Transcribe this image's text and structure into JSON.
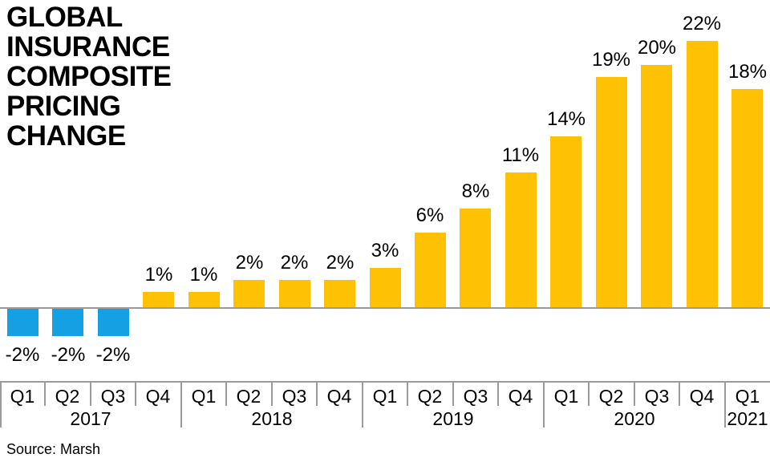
{
  "title": {
    "lines": [
      "GLOBAL",
      "INSURANCE",
      "COMPOSITE",
      "PRICING",
      "CHANGE"
    ]
  },
  "source_label": "Source: Marsh",
  "chart_data": {
    "type": "bar",
    "title": "GLOBAL INSURANCE COMPOSITE PRICING CHANGE",
    "unit": "%",
    "ylabel": "",
    "xlabel": "",
    "ylim": [
      -2,
      22
    ],
    "grid": false,
    "legend": "none",
    "source": "Source: Marsh",
    "colors": {
      "positive_bar": "#FFC103",
      "negative_bar": "#14A0E2",
      "axis_line": "#9B9B9B",
      "text": "#000000",
      "background": "#FFFFFF"
    },
    "points": [
      {
        "quarter": "Q1",
        "year": "2017",
        "value": -2,
        "label": "-2%"
      },
      {
        "quarter": "Q2",
        "year": "2017",
        "value": -2,
        "label": "-2%"
      },
      {
        "quarter": "Q3",
        "year": "2017",
        "value": -2,
        "label": "-2%"
      },
      {
        "quarter": "Q4",
        "year": "2017",
        "value": 1,
        "label": "1%"
      },
      {
        "quarter": "Q1",
        "year": "2018",
        "value": 1,
        "label": "1%"
      },
      {
        "quarter": "Q2",
        "year": "2018",
        "value": 2,
        "label": "2%"
      },
      {
        "quarter": "Q3",
        "year": "2018",
        "value": 2,
        "label": "2%"
      },
      {
        "quarter": "Q4",
        "year": "2018",
        "value": 2,
        "label": "2%"
      },
      {
        "quarter": "Q1",
        "year": "2019",
        "value": 3,
        "label": "3%"
      },
      {
        "quarter": "Q2",
        "year": "2019",
        "value": 6,
        "label": "6%"
      },
      {
        "quarter": "Q3",
        "year": "2019",
        "value": 8,
        "label": "8%"
      },
      {
        "quarter": "Q4",
        "year": "2019",
        "value": 11,
        "label": "11%"
      },
      {
        "quarter": "Q1",
        "year": "2020",
        "value": 14,
        "label": "14%"
      },
      {
        "quarter": "Q2",
        "year": "2020",
        "value": 19,
        "label": "19%"
      },
      {
        "quarter": "Q3",
        "year": "2020",
        "value": 20,
        "label": "20%"
      },
      {
        "quarter": "Q4",
        "year": "2020",
        "value": 22,
        "label": "22%"
      },
      {
        "quarter": "Q1",
        "year": "2021",
        "value": 18,
        "label": "18%"
      }
    ],
    "year_groups": [
      {
        "label": "2017",
        "quarters": 4
      },
      {
        "label": "2018",
        "quarters": 4
      },
      {
        "label": "2019",
        "quarters": 4
      },
      {
        "label": "2020",
        "quarters": 4
      },
      {
        "label": "2021",
        "quarters": 1
      }
    ]
  }
}
